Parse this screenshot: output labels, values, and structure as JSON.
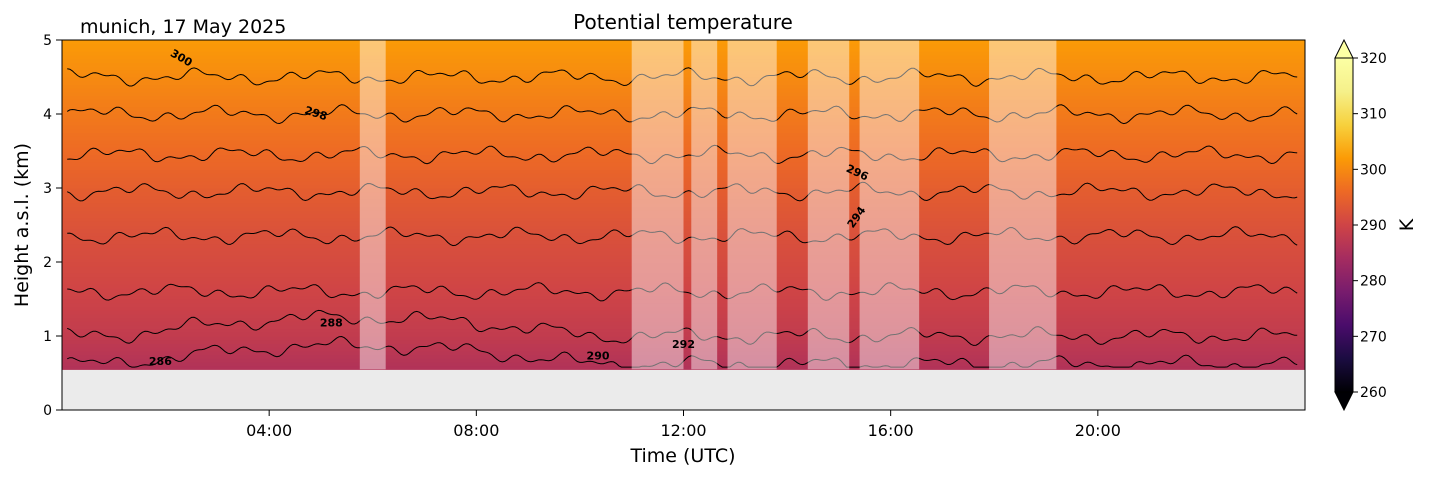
{
  "header": {
    "location_date": "munich, 17 May 2025",
    "title": "Potential temperature"
  },
  "chart_data": {
    "type": "heatmap",
    "title": "Potential temperature",
    "subtitle": "munich, 17 May 2025",
    "xlabel": "Time (UTC)",
    "ylabel": "Height a.s.l. (km)",
    "x_range_hours": [
      0,
      24
    ],
    "xlim_hours": [
      0,
      24
    ],
    "ylim": [
      0,
      5
    ],
    "x_ticks": [
      {
        "value": 4,
        "label": "04:00"
      },
      {
        "value": 8,
        "label": "08:00"
      },
      {
        "value": 12,
        "label": "12:00"
      },
      {
        "value": 16,
        "label": "16:00"
      },
      {
        "value": 20,
        "label": "20:00"
      }
    ],
    "y_ticks": [
      {
        "value": 0,
        "label": "0"
      },
      {
        "value": 1,
        "label": "1"
      },
      {
        "value": 2,
        "label": "2"
      },
      {
        "value": 3,
        "label": "3"
      },
      {
        "value": 4,
        "label": "4"
      },
      {
        "value": 5,
        "label": "5"
      }
    ],
    "data_bottom_km": 0.55,
    "colormap": "inferno",
    "colorbar": {
      "label": "K",
      "min": 260,
      "max": 320,
      "extend": "both",
      "ticks": [
        {
          "value": 260,
          "label": "260"
        },
        {
          "value": 270,
          "label": "270"
        },
        {
          "value": 280,
          "label": "280"
        },
        {
          "value": 290,
          "label": "290"
        },
        {
          "value": 300,
          "label": "300"
        },
        {
          "value": 310,
          "label": "310"
        },
        {
          "value": 320,
          "label": "320"
        }
      ]
    },
    "contour_interval_K": 2,
    "contours": [
      {
        "level": 286,
        "height_km": 0.62
      },
      {
        "level": 288,
        "height_km": 1.0
      },
      {
        "level": 290,
        "height_km": 1.6
      },
      {
        "level": 292,
        "height_km": 2.35
      },
      {
        "level": 294,
        "height_km": 2.95
      },
      {
        "level": 296,
        "height_km": 3.45
      },
      {
        "level": 298,
        "height_km": 4.0
      },
      {
        "level": 300,
        "height_km": 4.5
      }
    ],
    "contour_labels": [
      {
        "text": "286",
        "x": 1.9,
        "y": 0.65,
        "rot": 0
      },
      {
        "text": "288",
        "x": 5.2,
        "y": 1.17,
        "rot": 0
      },
      {
        "text": "290",
        "x": 10.35,
        "y": 0.72,
        "rot": 0
      },
      {
        "text": "292",
        "x": 12.0,
        "y": 0.88,
        "rot": 0
      },
      {
        "text": "294",
        "x": 15.35,
        "y": 2.6,
        "rot": -55
      },
      {
        "text": "296",
        "x": 15.35,
        "y": 3.2,
        "rot": 25
      },
      {
        "text": "298",
        "x": 4.9,
        "y": 4.0,
        "rot": 18
      },
      {
        "text": "300",
        "x": 2.3,
        "y": 4.75,
        "rot": 30
      }
    ],
    "masked_periods_hours": [
      [
        5.75,
        6.25
      ],
      [
        11.0,
        12.0
      ],
      [
        12.15,
        12.65
      ],
      [
        12.85,
        13.8
      ],
      [
        14.4,
        15.2
      ],
      [
        15.4,
        16.55
      ],
      [
        17.9,
        19.2
      ]
    ]
  },
  "colors": {
    "frame": "#000000",
    "nodata": "#ebebeb",
    "mask_overlay": "#ffffff",
    "contour": "#000000"
  }
}
